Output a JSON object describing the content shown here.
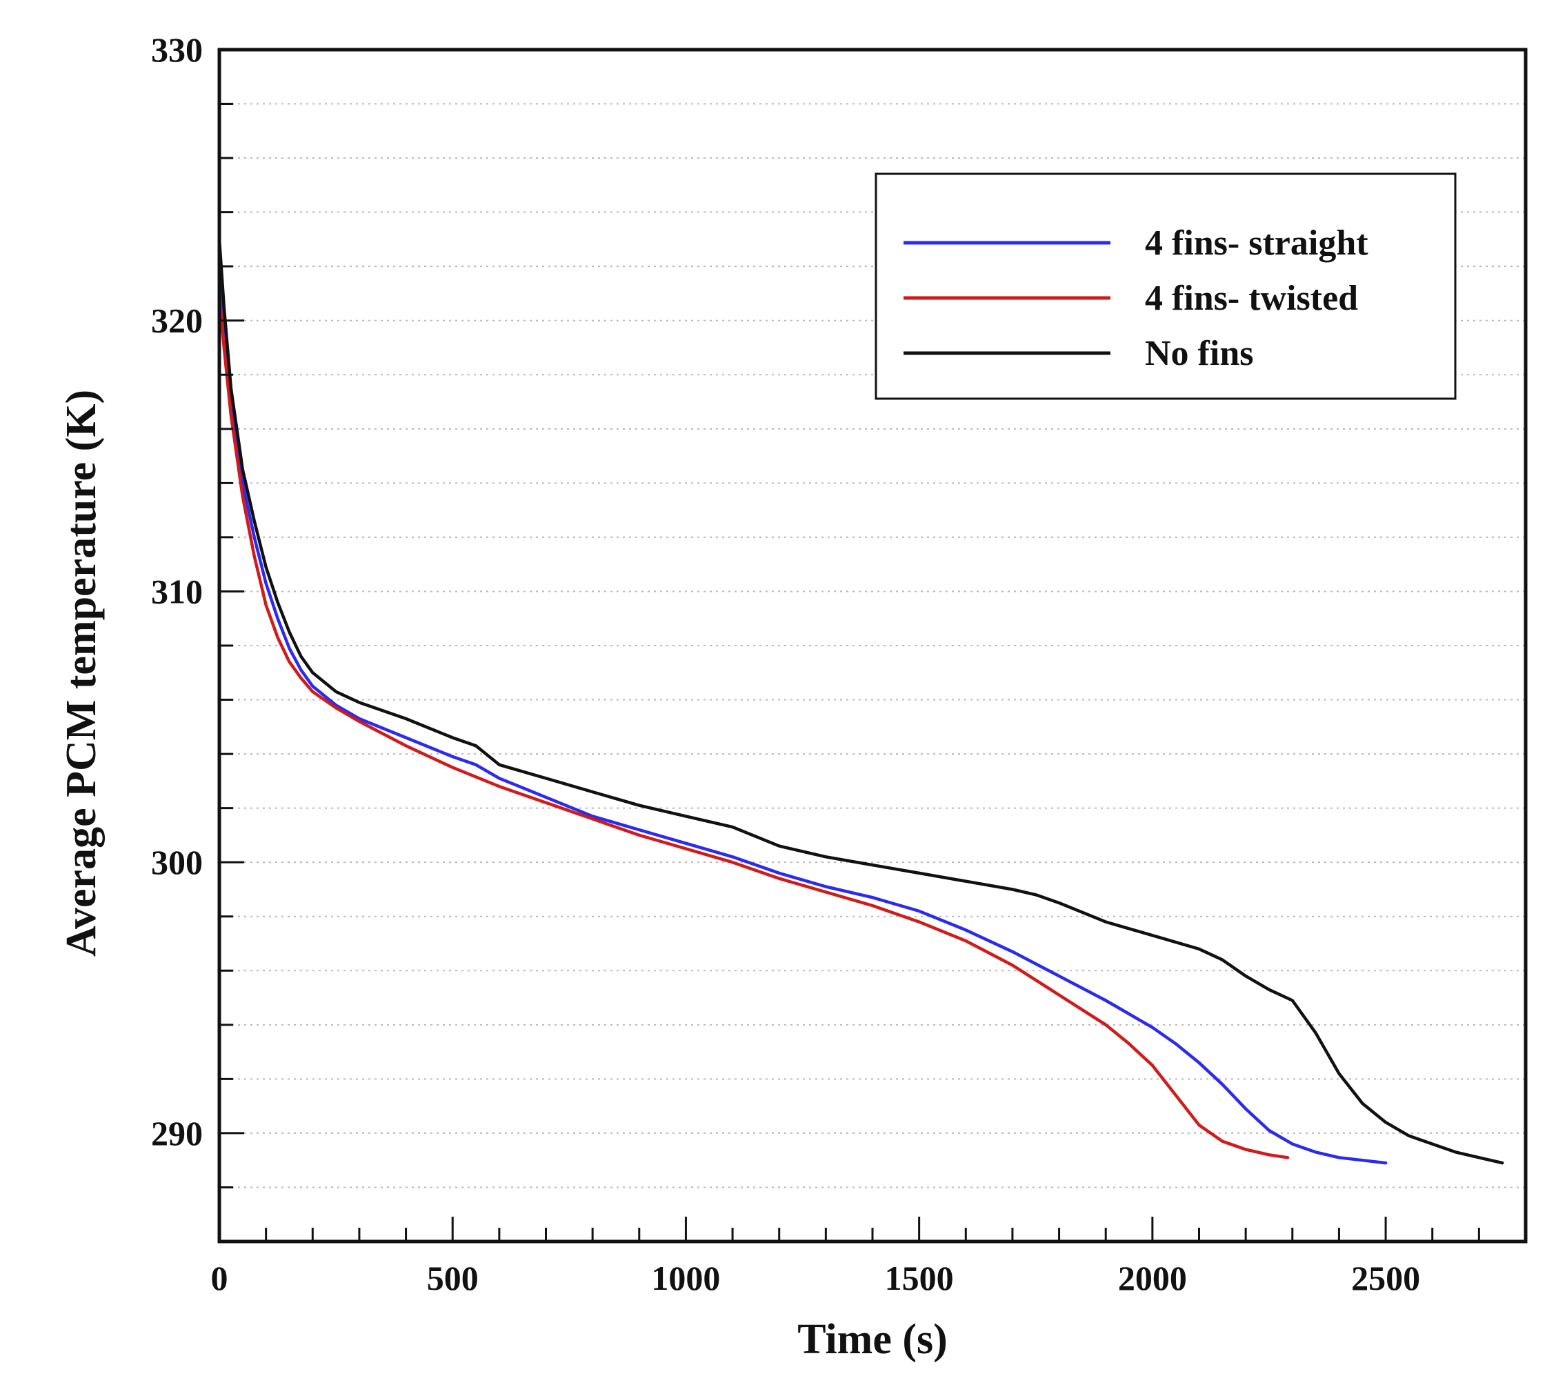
{
  "chart_data": {
    "type": "line",
    "title": "",
    "xlabel": "Time (s)",
    "ylabel": "Average PCM temperature (K)",
    "xlim": [
      0,
      2800
    ],
    "ylim": [
      286,
      330
    ],
    "x_major_ticks": [
      0,
      500,
      1000,
      1500,
      2000,
      2500
    ],
    "x_minor_step": 100,
    "y_major_ticks": [
      290,
      300,
      310,
      320,
      330
    ],
    "y_minor_step": 2,
    "x_tick_labels": [
      "0",
      "500",
      "1000",
      "1500",
      "2000",
      "2500"
    ],
    "y_tick_labels": [
      "290",
      "300",
      "310",
      "320",
      "330"
    ],
    "grid": true,
    "legend_position": "top-right",
    "series": [
      {
        "name": "4 fins- straight",
        "color": "#2b2bf0",
        "x": [
          0,
          10,
          25,
          50,
          75,
          100,
          125,
          150,
          175,
          200,
          250,
          300,
          400,
          500,
          550,
          600,
          700,
          800,
          900,
          1000,
          1100,
          1200,
          1300,
          1400,
          1500,
          1600,
          1700,
          1800,
          1900,
          2000,
          2050,
          2100,
          2150,
          2200,
          2250,
          2300,
          2350,
          2400,
          2450,
          2500
        ],
        "y": [
          321.5,
          319.5,
          317.0,
          314.0,
          312.0,
          310.3,
          309.0,
          307.9,
          307.1,
          306.5,
          305.8,
          305.3,
          304.6,
          303.9,
          303.6,
          303.1,
          302.4,
          301.7,
          301.2,
          300.7,
          300.2,
          299.6,
          299.1,
          298.7,
          298.2,
          297.5,
          296.7,
          295.8,
          294.9,
          293.9,
          293.3,
          292.6,
          291.8,
          290.9,
          290.1,
          289.6,
          289.3,
          289.1,
          289.0,
          288.9
        ]
      },
      {
        "name": "4 fins- twisted",
        "color": "#d11a1a",
        "x": [
          0,
          10,
          25,
          50,
          75,
          100,
          125,
          150,
          175,
          200,
          250,
          300,
          400,
          500,
          600,
          700,
          800,
          900,
          1000,
          1100,
          1200,
          1300,
          1400,
          1500,
          1600,
          1700,
          1800,
          1900,
          1950,
          2000,
          2050,
          2100,
          2150,
          2200,
          2250,
          2290
        ],
        "y": [
          321.0,
          319.0,
          316.5,
          313.5,
          311.3,
          309.5,
          308.3,
          307.4,
          306.8,
          306.3,
          305.7,
          305.2,
          304.3,
          303.5,
          302.8,
          302.2,
          301.6,
          301.0,
          300.5,
          300.0,
          299.4,
          298.9,
          298.4,
          297.8,
          297.1,
          296.2,
          295.1,
          294.0,
          293.3,
          292.5,
          291.4,
          290.3,
          289.7,
          289.4,
          289.2,
          289.1
        ]
      },
      {
        "name": "No fins",
        "color": "#111111",
        "x": [
          0,
          10,
          25,
          50,
          75,
          100,
          125,
          150,
          175,
          200,
          250,
          300,
          400,
          500,
          550,
          600,
          700,
          800,
          900,
          1000,
          1100,
          1200,
          1300,
          1400,
          1500,
          1600,
          1700,
          1750,
          1800,
          1900,
          2000,
          2100,
          2150,
          2200,
          2250,
          2300,
          2350,
          2400,
          2450,
          2500,
          2550,
          2600,
          2650,
          2700,
          2750
        ],
        "y": [
          323.0,
          320.5,
          317.5,
          314.5,
          312.6,
          310.9,
          309.6,
          308.5,
          307.6,
          307.0,
          306.3,
          305.9,
          305.3,
          304.6,
          304.3,
          303.6,
          303.1,
          302.6,
          302.1,
          301.7,
          301.3,
          300.6,
          300.2,
          299.9,
          299.6,
          299.3,
          299.0,
          298.8,
          298.5,
          297.8,
          297.3,
          296.8,
          296.4,
          295.8,
          295.3,
          294.9,
          293.7,
          292.2,
          291.1,
          290.4,
          289.9,
          289.6,
          289.3,
          289.1,
          288.9
        ]
      }
    ]
  }
}
